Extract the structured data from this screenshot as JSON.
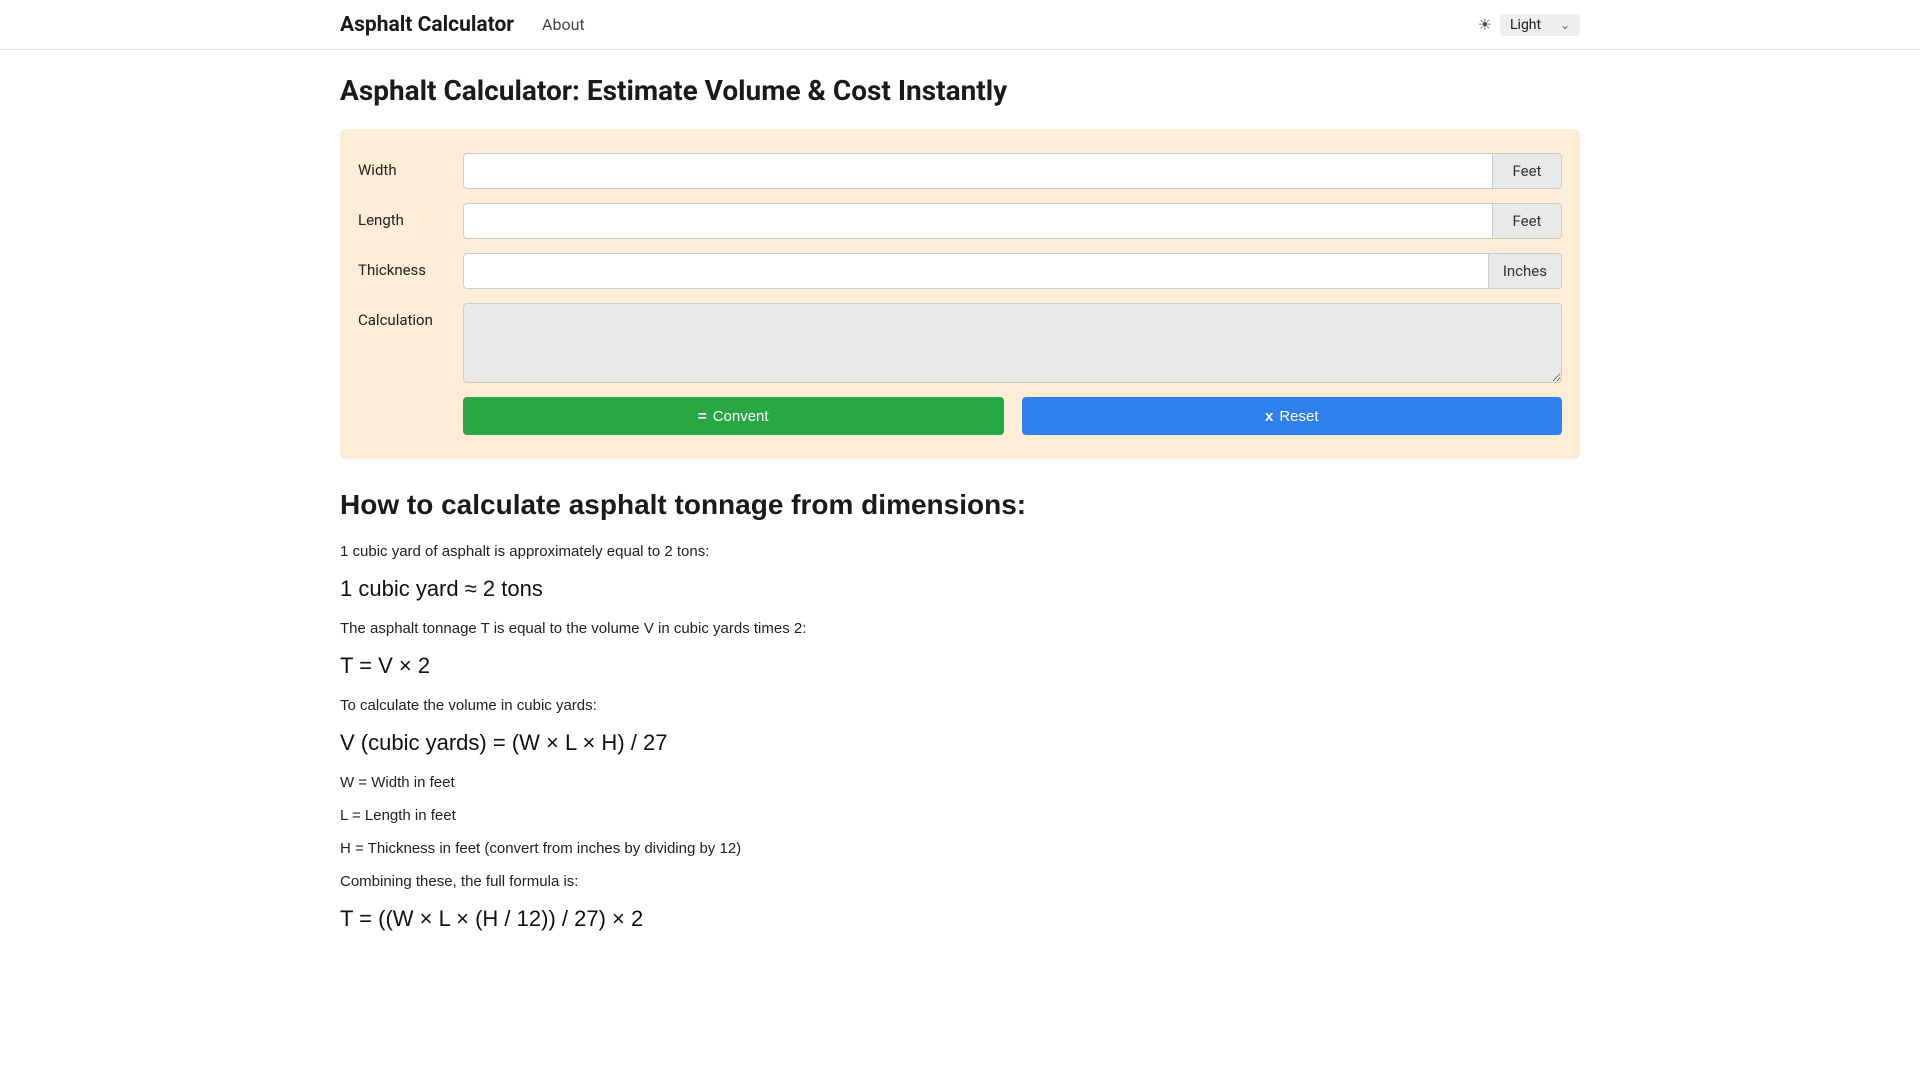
{
  "navbar": {
    "brand": "Asphalt Calculator",
    "links": [
      {
        "label": "About"
      }
    ],
    "theme": {
      "selected": "Light"
    }
  },
  "page": {
    "title": "Asphalt Calculator: Estimate Volume & Cost Instantly"
  },
  "form": {
    "fields": [
      {
        "label": "Width",
        "value": "",
        "unit": "Feet"
      },
      {
        "label": "Length",
        "value": "",
        "unit": "Feet"
      },
      {
        "label": "Thickness",
        "value": "",
        "unit": "Inches"
      }
    ],
    "calculation": {
      "label": "Calculation",
      "value": ""
    },
    "buttons": {
      "convert": "Convent",
      "reset": "Reset"
    }
  },
  "content": {
    "heading": "How to calculate asphalt tonnage from dimensions:",
    "lines": [
      {
        "type": "body",
        "text": "1 cubic yard of asphalt is approximately equal to 2 tons:"
      },
      {
        "type": "formula",
        "text": "1 cubic yard ≈ 2 tons"
      },
      {
        "type": "body",
        "text": "The asphalt tonnage T is equal to the volume V in cubic yards times 2:"
      },
      {
        "type": "formula",
        "text": "T = V × 2"
      },
      {
        "type": "body",
        "text": "To calculate the volume in cubic yards:"
      },
      {
        "type": "formula",
        "text": "V (cubic yards) = (W × L × H) / 27"
      },
      {
        "type": "body",
        "text": "W = Width in feet"
      },
      {
        "type": "body",
        "text": "L = Length in feet"
      },
      {
        "type": "body",
        "text": "H = Thickness in feet (convert from inches by dividing by 12)"
      },
      {
        "type": "body",
        "text": "Combining these, the full formula is:"
      },
      {
        "type": "formula",
        "text": "T = ((W × L × (H / 12)) / 27) × 2"
      }
    ]
  },
  "colors": {
    "card_bg": "#fdedd7",
    "convert_btn": "#28a745",
    "reset_btn": "#2f80ed",
    "addon_bg": "#e9e9e9",
    "border": "#cccccc"
  }
}
